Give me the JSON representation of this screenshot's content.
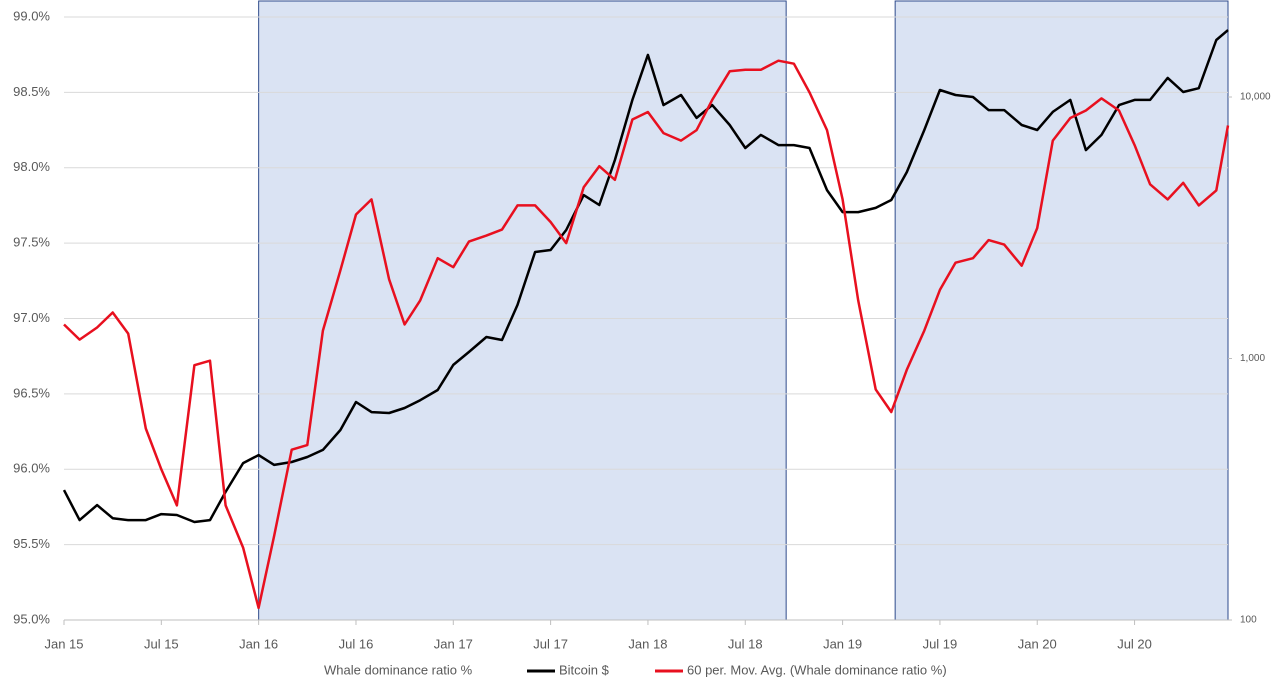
{
  "chart_data": {
    "type": "line",
    "x": [
      2015,
      2015.08,
      2015.17,
      2015.25,
      2015.33,
      2015.42,
      2015.5,
      2015.58,
      2015.67,
      2015.75,
      2015.83,
      2015.92,
      2016,
      2016.08,
      2016.17,
      2016.25,
      2016.33,
      2016.42,
      2016.5,
      2016.58,
      2016.67,
      2016.75,
      2016.83,
      2016.92,
      2017,
      2017.08,
      2017.17,
      2017.25,
      2017.33,
      2017.42,
      2017.5,
      2017.58,
      2017.67,
      2017.75,
      2017.83,
      2017.92,
      2018,
      2018.08,
      2018.17,
      2018.25,
      2018.33,
      2018.42,
      2018.5,
      2018.58,
      2018.67,
      2018.75,
      2018.83,
      2018.92,
      2019,
      2019.08,
      2019.17,
      2019.25,
      2019.33,
      2019.42,
      2019.5,
      2019.58,
      2019.67,
      2019.75,
      2019.83,
      2019.92,
      2020,
      2020.08,
      2020.17,
      2020.25,
      2020.33,
      2020.42,
      2020.5,
      2020.58,
      2020.67,
      2020.75,
      2020.83,
      2020.92,
      2020.98
    ],
    "series": [
      {
        "name": "Whale dominance ratio %",
        "color": "#ffffff",
        "values": [
          null,
          null,
          null,
          null,
          null,
          null,
          null,
          null,
          null,
          null,
          null,
          null,
          null,
          null,
          null,
          null,
          null,
          null,
          null,
          null,
          null,
          null,
          null,
          null,
          null,
          null,
          null,
          null,
          null,
          null,
          null,
          null,
          null,
          null,
          null,
          null,
          null,
          null,
          null,
          null,
          null,
          null,
          null,
          null,
          null,
          null,
          null,
          null,
          null,
          null,
          null,
          null,
          null,
          null,
          null,
          null,
          null,
          null,
          null,
          null,
          null,
          null,
          null,
          null,
          null,
          null,
          null,
          null,
          null,
          null,
          null,
          null,
          null
        ]
      },
      {
        "name": "Bitcoin $",
        "color": "#000000",
        "axis": "y2",
        "values": [
          314,
          241,
          275,
          245,
          241,
          241,
          254,
          252,
          237,
          241,
          309,
          398,
          427,
          392,
          402,
          420,
          447,
          533,
          682,
          624,
          619,
          647,
          693,
          758,
          945,
          1059,
          1208,
          1177,
          1603,
          2554,
          2600,
          3100,
          4217,
          3864,
          5741,
          9748,
          14490,
          9311,
          10180,
          8318,
          9311,
          7816,
          6383,
          7161,
          6546,
          6546,
          6383,
          4404,
          3631,
          3631,
          3767,
          4037,
          5164,
          7482,
          10640,
          10180,
          10000,
          8913,
          8913,
          7816,
          7482,
          8770,
          9748,
          6266,
          7161,
          9311,
          9748,
          9748,
          11830,
          10450,
          10810,
          16520,
          18030
        ]
      },
      {
        "name": "60 per. Mov. Avg. (Whale dominance ratio %)",
        "color": "#e8101f",
        "values": [
          96.96,
          96.86,
          96.94,
          97.04,
          96.9,
          96.27,
          96.0,
          95.76,
          96.69,
          96.72,
          95.76,
          95.48,
          95.08,
          95.56,
          96.13,
          96.16,
          96.92,
          97.32,
          97.69,
          97.79,
          97.26,
          96.96,
          97.12,
          97.4,
          97.34,
          97.51,
          97.55,
          97.59,
          97.75,
          97.75,
          97.64,
          97.5,
          97.87,
          98.01,
          97.92,
          98.32,
          98.37,
          98.23,
          98.18,
          98.25,
          98.45,
          98.64,
          98.65,
          98.65,
          98.71,
          98.69,
          98.5,
          98.25,
          97.79,
          97.12,
          96.53,
          96.38,
          96.66,
          96.92,
          97.19,
          97.37,
          97.4,
          97.52,
          97.49,
          97.35,
          97.6,
          98.18,
          98.33,
          98.38,
          98.46,
          98.38,
          98.15,
          97.89,
          97.79,
          97.9,
          97.75,
          97.85,
          98.28
        ]
      }
    ],
    "xlim": [
      2015,
      2020.98
    ],
    "xticks": [
      {
        "value": 2015,
        "label": "Jan 15"
      },
      {
        "value": 2015.5,
        "label": "Jul 15"
      },
      {
        "value": 2016,
        "label": "Jan 16"
      },
      {
        "value": 2016.5,
        "label": "Jul 16"
      },
      {
        "value": 2017,
        "label": "Jan 17"
      },
      {
        "value": 2017.5,
        "label": "Jul 17"
      },
      {
        "value": 2018,
        "label": "Jan 18"
      },
      {
        "value": 2018.5,
        "label": "Jul 18"
      },
      {
        "value": 2019,
        "label": "Jan 19"
      },
      {
        "value": 2019.5,
        "label": "Jul 19"
      },
      {
        "value": 2020,
        "label": "Jan 20"
      },
      {
        "value": 2020.5,
        "label": "Jul 20"
      }
    ],
    "ylim": [
      95,
      99
    ],
    "yticks": [
      {
        "value": 95,
        "label": "95.0%"
      },
      {
        "value": 95.5,
        "label": "95.5%"
      },
      {
        "value": 96,
        "label": "96.0%"
      },
      {
        "value": 96.5,
        "label": "96.5%"
      },
      {
        "value": 97,
        "label": "97.0%"
      },
      {
        "value": 97.5,
        "label": "97.5%"
      },
      {
        "value": 98,
        "label": "98.0%"
      },
      {
        "value": 98.5,
        "label": "98.5%"
      },
      {
        "value": 99,
        "label": "99.0%"
      }
    ],
    "y2lim": [
      100,
      20230
    ],
    "y2ticks": [
      100,
      {
        "value": 1000,
        "label": "1,000"
      },
      {
        "value": 10000,
        "label": "10,000"
      }
    ],
    "y2_log": true,
    "grid": true,
    "legend": "bottom",
    "shaded_regions": [
      [
        2016,
        2018.71
      ],
      [
        2019.27,
        2020.98
      ]
    ],
    "shaded_color": "#dae3f3"
  }
}
